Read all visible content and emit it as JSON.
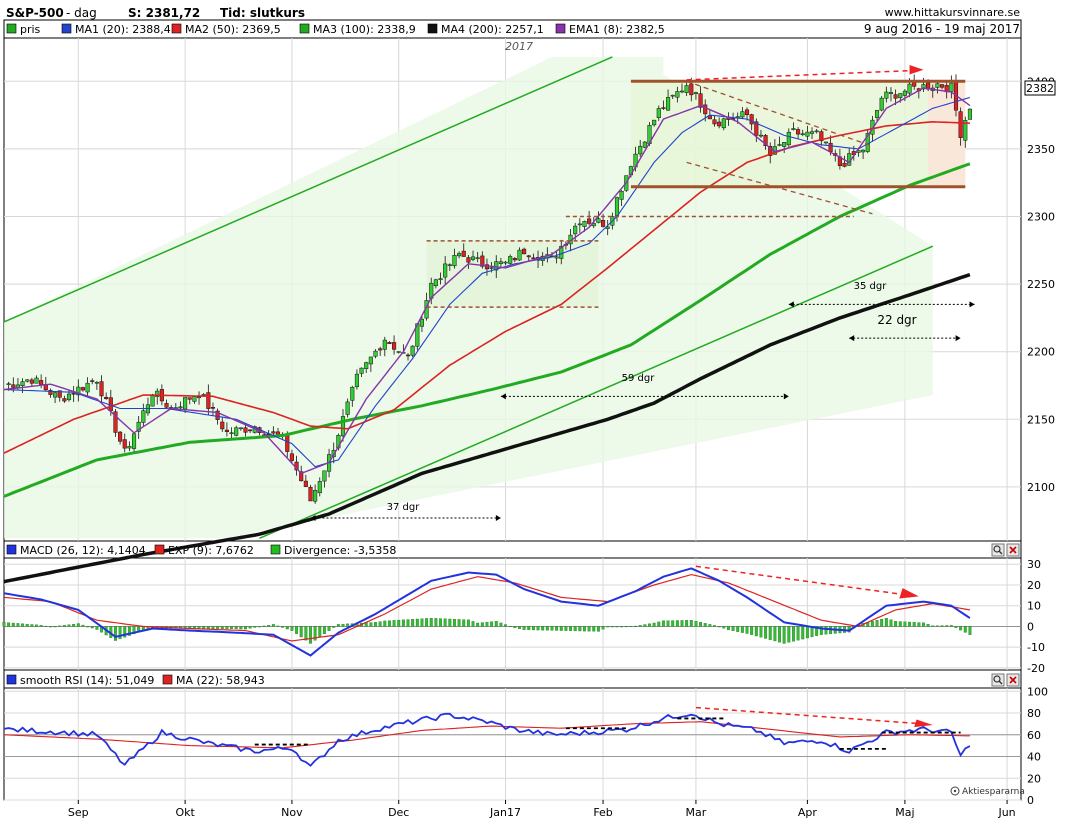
{
  "header": {
    "symbol": "S&P-500",
    "period": "- dag",
    "close_label": "S: 2381,72",
    "time_label": "Tid: slutkurs",
    "site": "www.hittakursvinnare.se",
    "range": "9 aug 2016 - 19 maj 2017"
  },
  "legend_main": [
    {
      "label": "pris",
      "color": "#22aa22"
    },
    {
      "label": "MA1 (20): 2388,4",
      "color": "#2244cc"
    },
    {
      "label": "MA2 (50): 2369,5",
      "color": "#dd2222"
    },
    {
      "label": "MA3 (100): 2338,9",
      "color": "#22aa22"
    },
    {
      "label": "MA4 (200): 2257,1",
      "color": "#111111"
    },
    {
      "label": "EMA1 (8): 2382,5",
      "color": "#8833aa"
    }
  ],
  "legend_macd": [
    {
      "label": "MACD (26, 12): 4,1404",
      "color": "#2233dd"
    },
    {
      "label": "EXP (9): 7,6762",
      "color": "#dd2222"
    },
    {
      "label": "Divergence: -3,5358",
      "color": "#22bb22"
    }
  ],
  "legend_rsi": [
    {
      "label": "smooth RSI (14): 51,049",
      "color": "#2233dd"
    },
    {
      "label": "MA (22): 58,943",
      "color": "#dd2222"
    }
  ],
  "price_badge": "2382",
  "year_label": "2017",
  "annotations": [
    {
      "label": "37 dgr"
    },
    {
      "label": "59 dgr"
    },
    {
      "label": "35 dgr"
    },
    {
      "label": "22 dgr"
    }
  ],
  "watermark": "Aktiespararna",
  "icons": {
    "zoom": "magnifier-icon",
    "close": "close-icon"
  },
  "chart_data": {
    "type": "line",
    "x_tick_labels": [
      "Sep",
      "Okt",
      "Nov",
      "Dec",
      "Jan17",
      "Feb",
      "Mar",
      "Apr",
      "Maj",
      "Jun"
    ],
    "x_tick_values": [
      16,
      39,
      62,
      85,
      108,
      129,
      149,
      173,
      194,
      216
    ],
    "x_range": [
      0,
      219
    ],
    "price": {
      "ylim": [
        2060,
        2432
      ],
      "y_ticks": [
        2100,
        2150,
        2200,
        2250,
        2300,
        2350,
        2400
      ],
      "close_knots": [
        [
          0,
          2175
        ],
        [
          6,
          2180
        ],
        [
          12,
          2165
        ],
        [
          20,
          2180
        ],
        [
          26,
          2125
        ],
        [
          32,
          2170
        ],
        [
          36,
          2158
        ],
        [
          42,
          2170
        ],
        [
          48,
          2140
        ],
        [
          54,
          2145
        ],
        [
          60,
          2135
        ],
        [
          66,
          2090
        ],
        [
          71,
          2130
        ],
        [
          76,
          2180
        ],
        [
          82,
          2210
        ],
        [
          87,
          2195
        ],
        [
          92,
          2250
        ],
        [
          98,
          2272
        ],
        [
          103,
          2265
        ],
        [
          108,
          2265
        ],
        [
          112,
          2275
        ],
        [
          118,
          2268
        ],
        [
          124,
          2298
        ],
        [
          130,
          2295
        ],
        [
          135,
          2340
        ],
        [
          141,
          2378
        ],
        [
          147,
          2398
        ],
        [
          153,
          2370
        ],
        [
          160,
          2375
        ],
        [
          165,
          2345
        ],
        [
          170,
          2362
        ],
        [
          175,
          2360
        ],
        [
          180,
          2338
        ],
        [
          185,
          2350
        ],
        [
          189,
          2388
        ],
        [
          196,
          2395
        ],
        [
          201,
          2398
        ],
        [
          204,
          2395
        ],
        [
          206,
          2362
        ],
        [
          208,
          2382
        ]
      ],
      "ma20_knots": [
        [
          0,
          2172
        ],
        [
          15,
          2170
        ],
        [
          25,
          2158
        ],
        [
          35,
          2158
        ],
        [
          50,
          2150
        ],
        [
          62,
          2132
        ],
        [
          67,
          2115
        ],
        [
          72,
          2120
        ],
        [
          80,
          2160
        ],
        [
          88,
          2195
        ],
        [
          96,
          2235
        ],
        [
          103,
          2258
        ],
        [
          110,
          2265
        ],
        [
          118,
          2270
        ],
        [
          126,
          2280
        ],
        [
          132,
          2300
        ],
        [
          140,
          2340
        ],
        [
          146,
          2362
        ],
        [
          152,
          2375
        ],
        [
          160,
          2372
        ],
        [
          168,
          2360
        ],
        [
          176,
          2353
        ],
        [
          184,
          2350
        ],
        [
          192,
          2365
        ],
        [
          200,
          2380
        ],
        [
          208,
          2388
        ]
      ],
      "ma50_knots": [
        [
          0,
          2125
        ],
        [
          15,
          2150
        ],
        [
          30,
          2168
        ],
        [
          45,
          2167
        ],
        [
          58,
          2155
        ],
        [
          66,
          2145
        ],
        [
          74,
          2143
        ],
        [
          84,
          2157
        ],
        [
          96,
          2190
        ],
        [
          108,
          2215
        ],
        [
          120,
          2235
        ],
        [
          130,
          2262
        ],
        [
          140,
          2290
        ],
        [
          150,
          2318
        ],
        [
          160,
          2340
        ],
        [
          170,
          2352
        ],
        [
          180,
          2360
        ],
        [
          190,
          2367
        ],
        [
          200,
          2370
        ],
        [
          208,
          2369
        ]
      ],
      "ma100_knots": [
        [
          0,
          2093
        ],
        [
          20,
          2120
        ],
        [
          40,
          2133
        ],
        [
          60,
          2138
        ],
        [
          75,
          2150
        ],
        [
          90,
          2160
        ],
        [
          105,
          2172
        ],
        [
          120,
          2185
        ],
        [
          135,
          2205
        ],
        [
          150,
          2238
        ],
        [
          165,
          2272
        ],
        [
          180,
          2300
        ],
        [
          195,
          2323
        ],
        [
          208,
          2339
        ]
      ],
      "ma200_knots": [
        [
          0,
          2030
        ],
        [
          30,
          2050
        ],
        [
          55,
          2065
        ],
        [
          70,
          2080
        ],
        [
          90,
          2110
        ],
        [
          110,
          2130
        ],
        [
          130,
          2150
        ],
        [
          140,
          2162
        ],
        [
          150,
          2180
        ],
        [
          165,
          2205
        ],
        [
          180,
          2225
        ],
        [
          195,
          2242
        ],
        [
          208,
          2257
        ]
      ],
      "ema8_knots": [
        [
          0,
          2172
        ],
        [
          10,
          2176
        ],
        [
          20,
          2165
        ],
        [
          28,
          2140
        ],
        [
          36,
          2158
        ],
        [
          46,
          2155
        ],
        [
          56,
          2140
        ],
        [
          64,
          2110
        ],
        [
          70,
          2118
        ],
        [
          78,
          2165
        ],
        [
          86,
          2200
        ],
        [
          92,
          2240
        ],
        [
          100,
          2265
        ],
        [
          108,
          2262
        ],
        [
          118,
          2272
        ],
        [
          126,
          2292
        ],
        [
          134,
          2325
        ],
        [
          142,
          2372
        ],
        [
          150,
          2382
        ],
        [
          158,
          2370
        ],
        [
          166,
          2348
        ],
        [
          174,
          2355
        ],
        [
          182,
          2340
        ],
        [
          190,
          2380
        ],
        [
          198,
          2395
        ],
        [
          204,
          2392
        ],
        [
          208,
          2382
        ]
      ]
    },
    "macd": {
      "ylim": [
        -21,
        33
      ],
      "y_ticks": [
        -20,
        -10,
        0,
        10,
        20,
        30
      ],
      "macd_knots": [
        [
          0,
          16
        ],
        [
          8,
          13
        ],
        [
          16,
          8
        ],
        [
          24,
          -5
        ],
        [
          32,
          -1
        ],
        [
          40,
          -2
        ],
        [
          50,
          -3
        ],
        [
          58,
          -4
        ],
        [
          66,
          -14
        ],
        [
          72,
          -3
        ],
        [
          80,
          6
        ],
        [
          86,
          14
        ],
        [
          92,
          22
        ],
        [
          100,
          26
        ],
        [
          106,
          25
        ],
        [
          112,
          18
        ],
        [
          120,
          12
        ],
        [
          128,
          10
        ],
        [
          136,
          17
        ],
        [
          142,
          24
        ],
        [
          148,
          28
        ],
        [
          154,
          22
        ],
        [
          160,
          14
        ],
        [
          168,
          2
        ],
        [
          176,
          -1
        ],
        [
          182,
          -2
        ],
        [
          190,
          10
        ],
        [
          198,
          12
        ],
        [
          204,
          10
        ],
        [
          208,
          4
        ]
      ],
      "signal_knots": [
        [
          0,
          14
        ],
        [
          10,
          12
        ],
        [
          20,
          3
        ],
        [
          30,
          0
        ],
        [
          40,
          -1
        ],
        [
          52,
          -2
        ],
        [
          62,
          -7
        ],
        [
          72,
          -4
        ],
        [
          82,
          6
        ],
        [
          92,
          18
        ],
        [
          102,
          24
        ],
        [
          110,
          21
        ],
        [
          120,
          14
        ],
        [
          130,
          12
        ],
        [
          140,
          20
        ],
        [
          148,
          25
        ],
        [
          156,
          21
        ],
        [
          166,
          12
        ],
        [
          176,
          3
        ],
        [
          184,
          0
        ],
        [
          192,
          8
        ],
        [
          200,
          11
        ],
        [
          208,
          8
        ]
      ]
    },
    "rsi": {
      "ylim": [
        0,
        103
      ],
      "y_ticks": [
        0,
        20,
        40,
        60,
        80,
        100
      ],
      "rsi_knots": [
        [
          0,
          65
        ],
        [
          10,
          63
        ],
        [
          20,
          60
        ],
        [
          26,
          32
        ],
        [
          34,
          62
        ],
        [
          44,
          52
        ],
        [
          54,
          45
        ],
        [
          62,
          48
        ],
        [
          66,
          30
        ],
        [
          72,
          55
        ],
        [
          80,
          65
        ],
        [
          88,
          72
        ],
        [
          96,
          78
        ],
        [
          104,
          72
        ],
        [
          110,
          65
        ],
        [
          118,
          60
        ],
        [
          126,
          62
        ],
        [
          134,
          65
        ],
        [
          142,
          75
        ],
        [
          148,
          80
        ],
        [
          154,
          70
        ],
        [
          162,
          64
        ],
        [
          168,
          52
        ],
        [
          176,
          55
        ],
        [
          182,
          45
        ],
        [
          190,
          62
        ],
        [
          198,
          65
        ],
        [
          204,
          62
        ],
        [
          206,
          40
        ],
        [
          208,
          52
        ]
      ],
      "ma_knots": [
        [
          0,
          60
        ],
        [
          20,
          56
        ],
        [
          40,
          50
        ],
        [
          60,
          48
        ],
        [
          75,
          55
        ],
        [
          90,
          64
        ],
        [
          105,
          68
        ],
        [
          120,
          66
        ],
        [
          135,
          70
        ],
        [
          150,
          72
        ],
        [
          165,
          65
        ],
        [
          180,
          58
        ],
        [
          195,
          60
        ],
        [
          208,
          59
        ]
      ],
      "guide_levels": [
        60,
        40
      ]
    }
  }
}
